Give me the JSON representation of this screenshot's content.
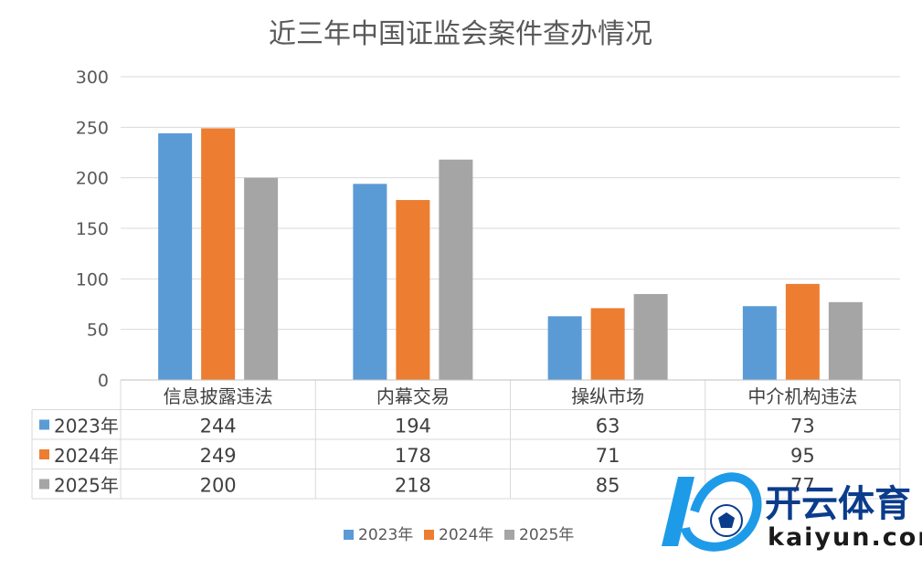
{
  "chart_data": {
    "type": "bar",
    "title": "近三年中国证监会案件查办情况",
    "categories": [
      "信息披露违法",
      "内幕交易",
      "操纵市场",
      "中介机构违法"
    ],
    "series": [
      {
        "name": "2023年",
        "values": [
          244,
          194,
          63,
          73
        ],
        "color": "#5b9bd5"
      },
      {
        "name": "2024年",
        "values": [
          249,
          178,
          71,
          95
        ],
        "color": "#ed7d31"
      },
      {
        "name": "2025年",
        "values": [
          200,
          218,
          85,
          77
        ],
        "color": "#a5a5a5"
      }
    ],
    "ylim": [
      0,
      300
    ],
    "yticks": [
      0,
      50,
      100,
      150,
      200,
      250,
      300
    ],
    "grid": true,
    "data_table": true,
    "legend": "bottom"
  },
  "watermark": {
    "text_cn": "开云体育",
    "text_en": "kaiyun.com",
    "colors": {
      "primary": "#1e9be8",
      "dark": "#0b3c8c"
    }
  }
}
